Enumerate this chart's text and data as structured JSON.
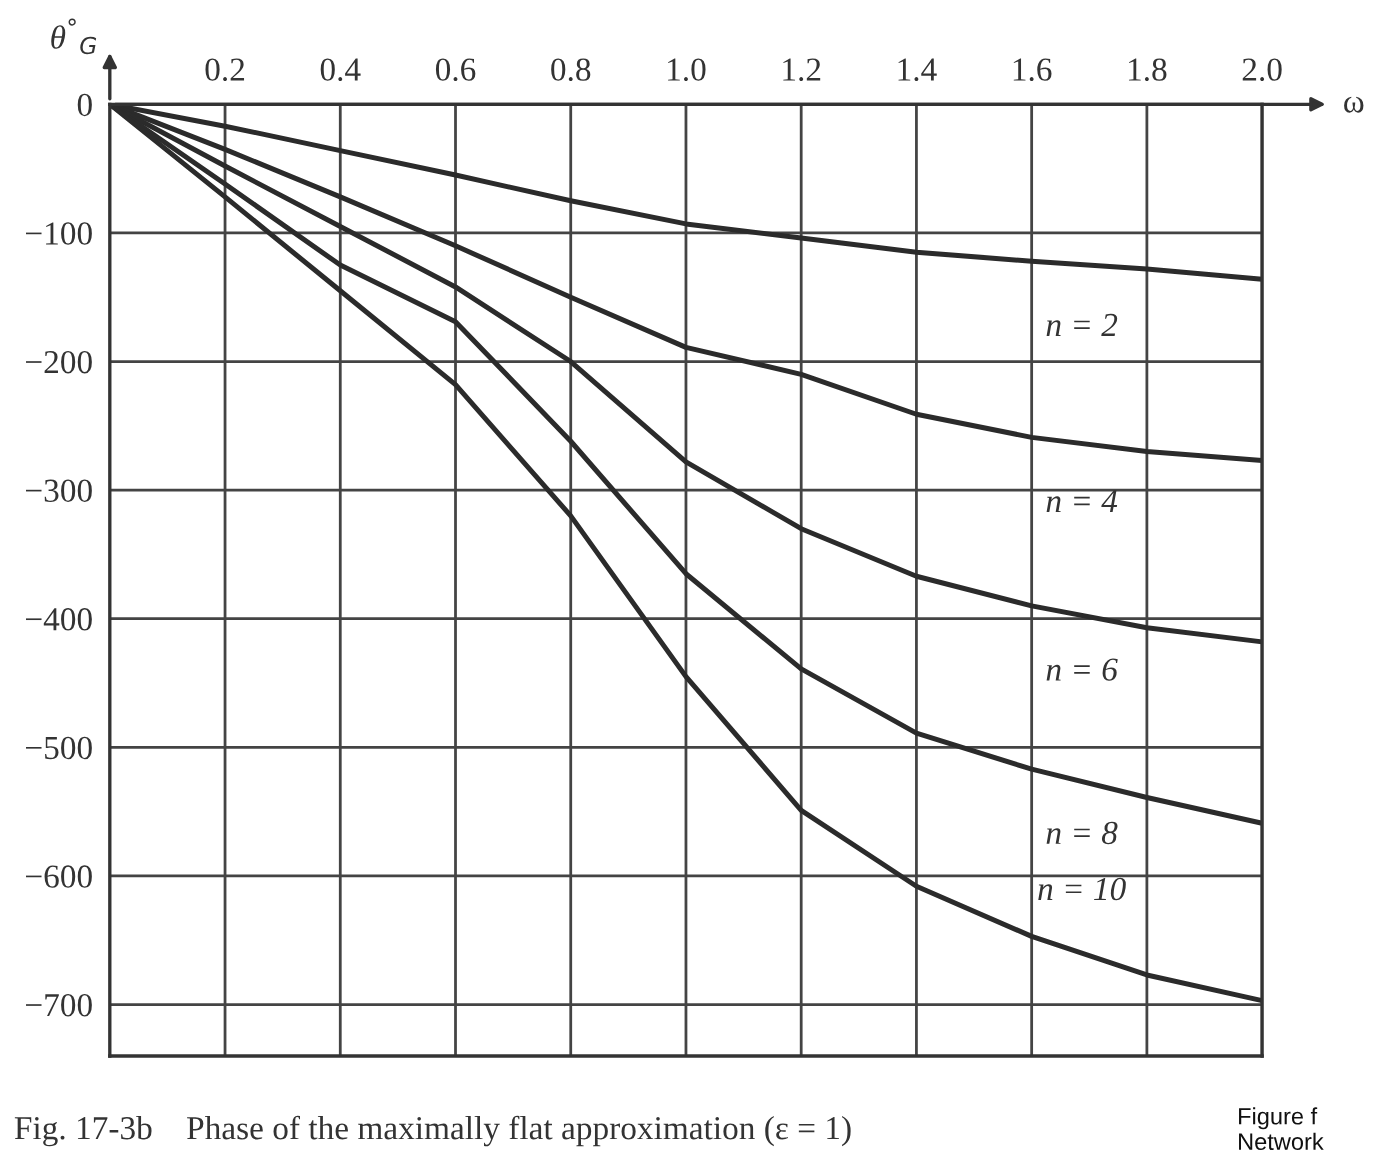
{
  "chart_data": {
    "type": "line",
    "ylabel": "θ$^{°}$$_{G}$",
    "xlabel": "ω",
    "x": [
      0,
      0.2,
      0.4,
      0.6,
      0.8,
      1.0,
      1.2,
      1.4,
      1.6,
      1.8,
      2.0
    ],
    "series": [
      {
        "color": "#2b2b2b",
        "values": [
          0,
          -17,
          -36,
          -55,
          -75,
          -93,
          -104,
          -115,
          -122,
          -128,
          -136
        ]
      },
      {
        "color": "#2b2b2b",
        "values": [
          0,
          -35,
          -72,
          -110,
          -150,
          -189,
          -210,
          -241,
          -259,
          -270,
          -277
        ]
      },
      {
        "color": "#2b2b2b",
        "values": [
          0,
          -48,
          -95,
          -142,
          -200,
          -278,
          -330,
          -367,
          -390,
          -407,
          -418
        ]
      },
      {
        "color": "#2b2b2b",
        "values": [
          0,
          -62,
          -125,
          -169,
          -262,
          -365,
          -439,
          -489,
          -517,
          -539,
          -559
        ]
      },
      {
        "color": "#2b2b2b",
        "values": [
          0,
          -72,
          -145,
          -218,
          -320,
          -445,
          -549,
          -608,
          -647,
          -677,
          -697
        ]
      }
    ],
    "xlim": [
      0,
      2.0
    ],
    "ylim": [
      -740,
      0
    ],
    "xticks": [
      0.2,
      0.4,
      0.6,
      0.8,
      {
        "value": 1.0,
        "label": "1.0"
      },
      1.2,
      1.4,
      1.6,
      1.8,
      {
        "value": 2.0,
        "label": "2.0"
      }
    ],
    "yticks": [
      0,
      {
        "value": -100,
        "label": "−100"
      },
      {
        "value": -200,
        "label": "−200"
      },
      {
        "value": -300,
        "label": "−300"
      },
      {
        "value": -400,
        "label": "−400"
      },
      {
        "value": -500,
        "label": "−500"
      },
      {
        "value": -600,
        "label": "−600"
      },
      {
        "value": -700,
        "label": "−700"
      }
    ],
    "grid": true,
    "marker": "none",
    "line_style": "solid",
    "annotations": [
      "n = 2",
      "n = 4",
      "n = 6",
      "n = 8",
      "n = 10",
      "Fig. 17-3b    Phase of the maximally flat approximation (ε = 1)",
      "Figure f\nNetwork"
    ]
  }
}
